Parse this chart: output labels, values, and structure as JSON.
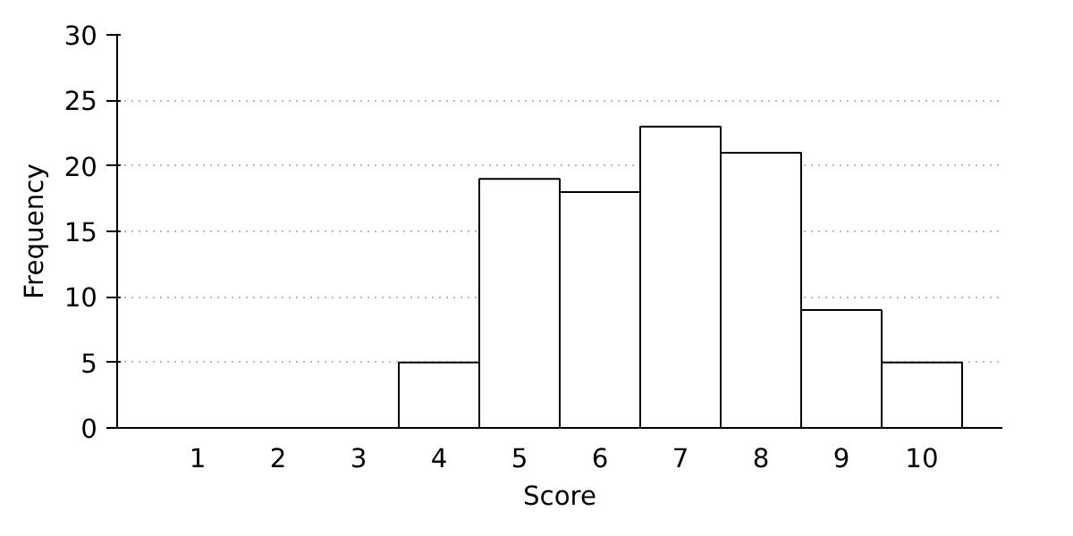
{
  "chart_data": {
    "type": "histogram",
    "xlabel": "Score",
    "ylabel": "Frequency",
    "bins": [
      0.5,
      1.5,
      2.5,
      3.5,
      4.5,
      5.5,
      6.5,
      7.5,
      8.5,
      9.5,
      10.5
    ],
    "values": [
      0,
      0,
      0,
      5,
      19,
      18,
      23,
      21,
      9,
      5
    ],
    "color": "#ffffff",
    "xlim": [
      0,
      11
    ],
    "xticks": [
      1,
      2,
      3,
      4,
      5,
      6,
      7,
      8,
      9,
      10
    ],
    "ylim": [
      0,
      30
    ],
    "yticks": [
      0,
      5,
      10,
      15,
      20,
      25,
      30
    ],
    "grid": "y"
  }
}
